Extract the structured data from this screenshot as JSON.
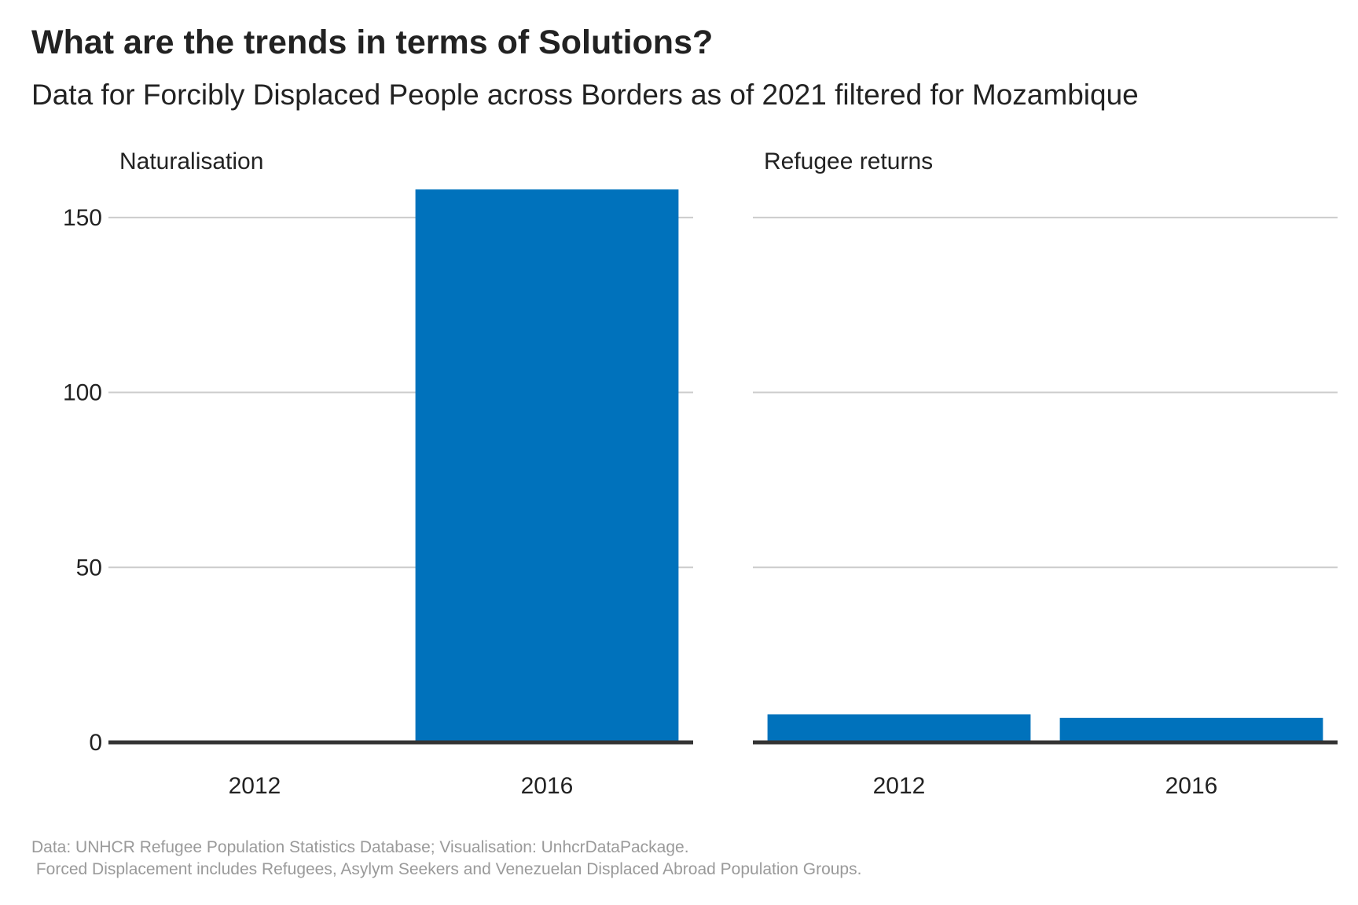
{
  "title": "What are the trends in terms of Solutions?",
  "subtitle": "Data for Forcibly Displaced People across Borders as of 2021 filtered for Mozambique",
  "caption_line1": "Data: UNHCR Refugee Population Statistics Database; Visualisation: UnhcrDataPackage.",
  "caption_line2": " Forced Displacement includes Refugees, Asylym Seekers and Venezuelan Displaced Abroad Population Groups.",
  "colors": {
    "bar": "#0072BC",
    "grid": "#cccccc",
    "baseline": "#333333",
    "text": "#222222",
    "caption": "#9a9a9a"
  },
  "chart_data": {
    "type": "bar",
    "title": "What are the trends in terms of Solutions?",
    "subtitle": "Data for Forcibly Displaced People across Borders as of 2021 filtered for Mozambique",
    "ylim": [
      0,
      165
    ],
    "yticks": [
      0,
      50,
      100,
      150
    ],
    "grid": true,
    "categories": [
      "2012",
      "2016"
    ],
    "facets": [
      {
        "name": "Naturalisation",
        "values": [
          0,
          158
        ]
      },
      {
        "name": "Refugee returns",
        "values": [
          8,
          7
        ]
      }
    ]
  }
}
